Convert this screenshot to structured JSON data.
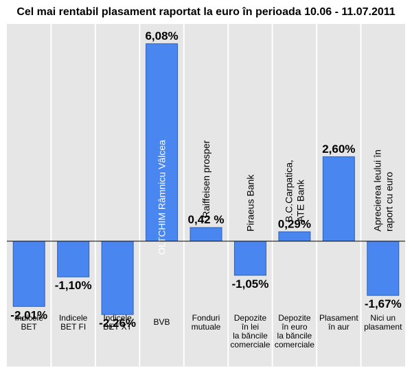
{
  "chart_data": {
    "type": "bar",
    "title": "Cel mai rentabil plasament raportat la euro în perioada 10.06 - 11.07.2011",
    "xlabel": "",
    "ylabel": "",
    "unit": "%",
    "ylim": [
      -3.0,
      6.2
    ],
    "grid": false,
    "colors": {
      "bar": "#4a86f0",
      "bar_edge": "#2f5fb5",
      "panel": "#e6e6e6",
      "divider": "#ffffff",
      "baseline": "#000000",
      "text": "#000000"
    },
    "categories": [
      {
        "label_lines": [
          "Indicele",
          "BET"
        ],
        "value": -2.01,
        "value_label": "-2,01%",
        "inbar_lines": []
      },
      {
        "label_lines": [
          "Indicele",
          "BET FI"
        ],
        "value": -1.1,
        "value_label": "-1,10%",
        "inbar_lines": []
      },
      {
        "label_lines": [
          "Indicele",
          "BET XT"
        ],
        "value": -2.26,
        "value_label": "-2,26%",
        "inbar_lines": []
      },
      {
        "label_lines": [
          "BVB"
        ],
        "value": 6.08,
        "value_label": "6,08%",
        "inbar_lines": [
          "OLTCHIM Râmnicu Vâlcea"
        ]
      },
      {
        "label_lines": [
          "Fonduri",
          "mutuale"
        ],
        "value": 0.42,
        "value_label": "0,42 %",
        "inbar_lines": [
          "Raiffeisen prosper"
        ]
      },
      {
        "label_lines": [
          "Depozite",
          "în lei",
          "la băncile",
          "comerciale"
        ],
        "value": -1.05,
        "value_label": "-1,05%",
        "inbar_lines": [
          "Piraeus Bank"
        ]
      },
      {
        "label_lines": [
          "Depozite",
          "în euro",
          "la băncile",
          "comerciale"
        ],
        "value": 0.29,
        "value_label": "0,29%",
        "inbar_lines": [
          "B.C.Carpatica,",
          "ATE Bank"
        ]
      },
      {
        "label_lines": [
          "Plasament",
          "în aur"
        ],
        "value": 2.6,
        "value_label": "2,60%",
        "inbar_lines": []
      },
      {
        "label_lines": [
          "Nici un",
          "plasament"
        ],
        "value": -1.67,
        "value_label": "-1,67%",
        "inbar_lines": [
          "Aprecierea leului în",
          "raport cu euro"
        ]
      }
    ]
  }
}
